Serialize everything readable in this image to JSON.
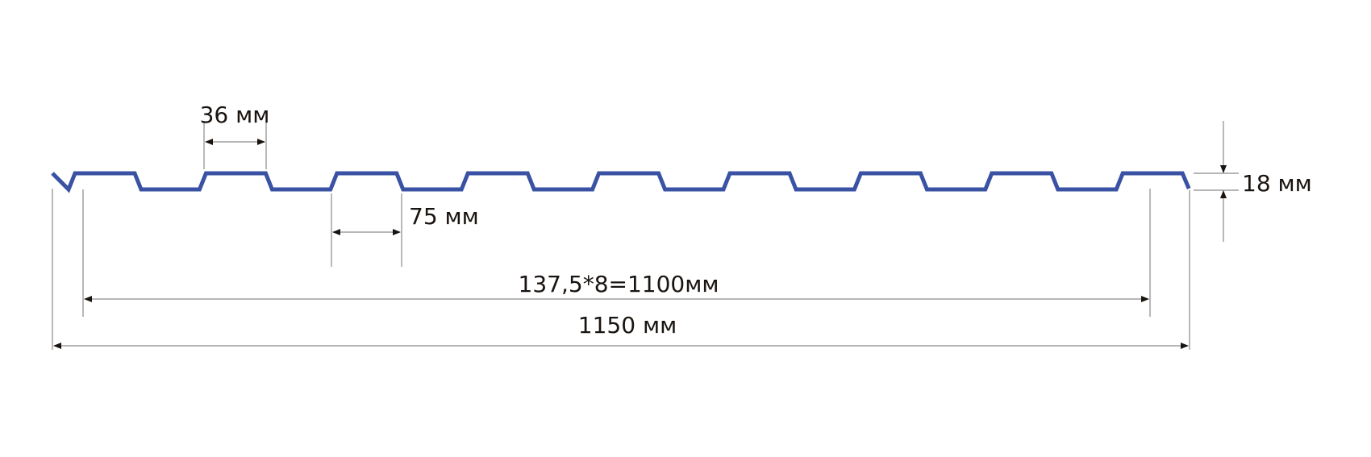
{
  "profile": {
    "color": "#3a52a3",
    "waves": 9
  },
  "dimensions": {
    "crest_width": "36 мм",
    "valley_width": "75 мм",
    "height": "18 мм",
    "working_width": "137,5*8=1100мм",
    "total_width": "1150 мм"
  }
}
